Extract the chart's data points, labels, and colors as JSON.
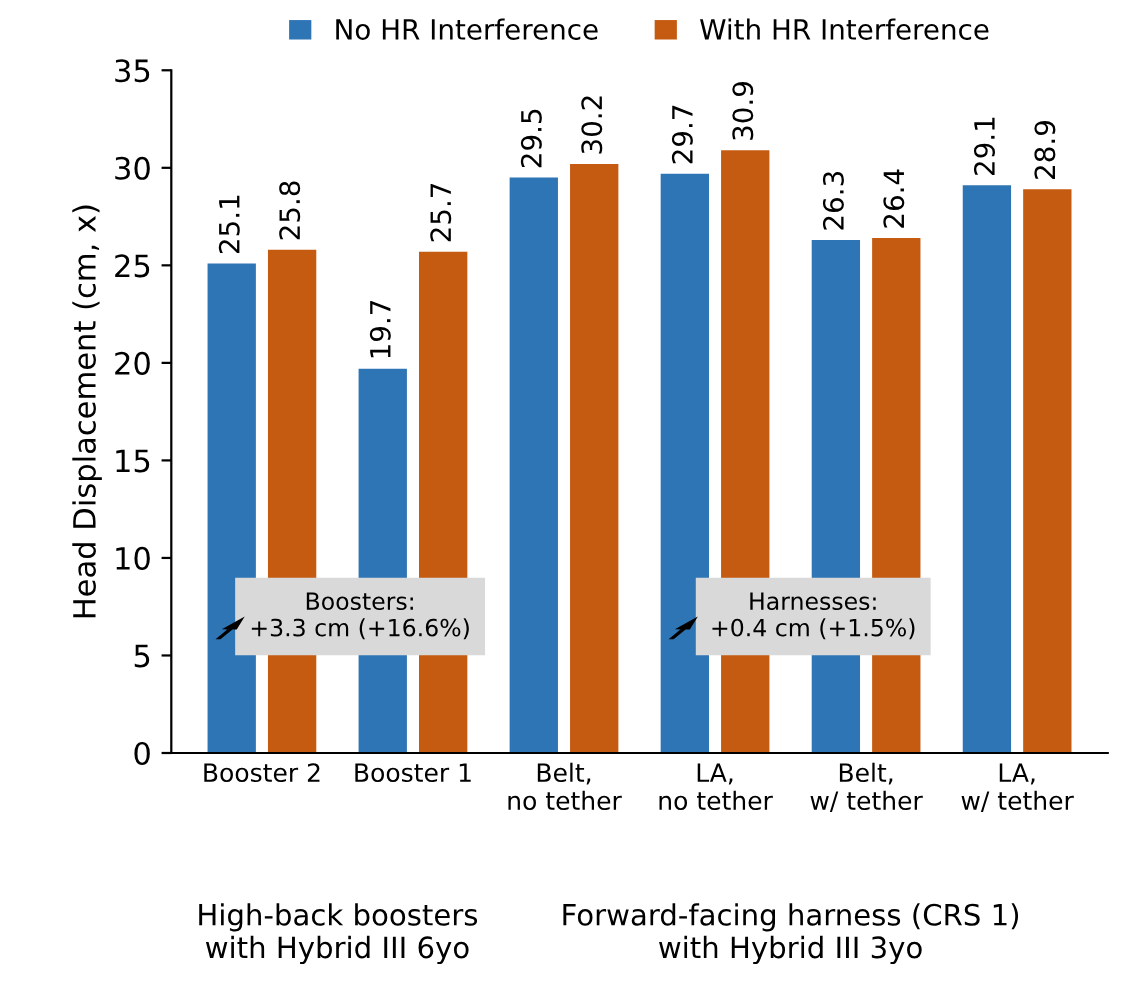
{
  "chart_data": {
    "type": "bar",
    "ylabel": "Head Displacement (cm, x)",
    "categories": [
      "Booster 2",
      "Booster 1",
      "Belt,\nno tether",
      "LA,\nno tether",
      "Belt,\nw/ tether",
      "LA,\nw/ tether"
    ],
    "series": [
      {
        "name": "No HR Interference",
        "color": "#2e75b6",
        "values": [
          25.1,
          19.7,
          29.5,
          29.7,
          26.3,
          29.1
        ]
      },
      {
        "name": "With HR Interference",
        "color": "#c55a11",
        "values": [
          25.8,
          25.7,
          30.2,
          30.9,
          26.4,
          28.9
        ]
      }
    ],
    "ylim": [
      0,
      35
    ],
    "yticks": [
      0,
      5,
      10,
      15,
      20,
      25,
      30,
      35
    ],
    "data_labels": true,
    "legend": "top",
    "grid": false,
    "annotations": [
      "High-back boosters\nwith Hybrid III 6yo",
      "Forward-facing harness (CRS 1)\nwith Hybrid III 3yo",
      "Boosters:\n+3.3 cm (+16.6%)",
      "Harnesses:\n+0.4 cm (+1.5%)"
    ]
  }
}
